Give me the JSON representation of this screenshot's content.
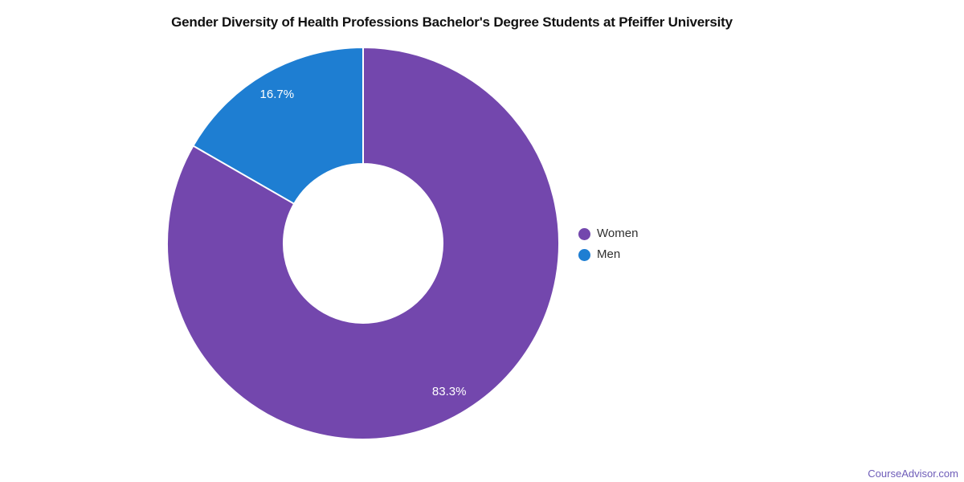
{
  "header": {
    "title": "Gender Diversity of Health Professions Bachelor's Degree Students at Pfeiffer University"
  },
  "chart_data": {
    "type": "pie",
    "donut": true,
    "title": "Gender Diversity of Health Professions Bachelor's Degree Students at Pfeiffer University",
    "start_angle_deg": 0,
    "direction": "clockwise",
    "inner_radius_ratio": 0.41,
    "legend_position": "right",
    "data_label_color": "#ffffff",
    "slice_border_color": "#ffffff",
    "categories": [
      "Women",
      "Men"
    ],
    "values": [
      83.3,
      16.7
    ],
    "slices": [
      {
        "label": "Women",
        "value": 83.3,
        "value_label": "83.3%",
        "color": "#7347ad"
      },
      {
        "label": "Men",
        "value": 16.7,
        "value_label": "16.7%",
        "color": "#1e7ed2"
      }
    ]
  },
  "legend": {
    "items": [
      {
        "label": "Women",
        "color": "#7347ad"
      },
      {
        "label": "Men",
        "color": "#1e7ed2"
      }
    ]
  },
  "footer": {
    "link_text": "CourseAdvisor.com",
    "link_color": "#6e5cb8"
  }
}
